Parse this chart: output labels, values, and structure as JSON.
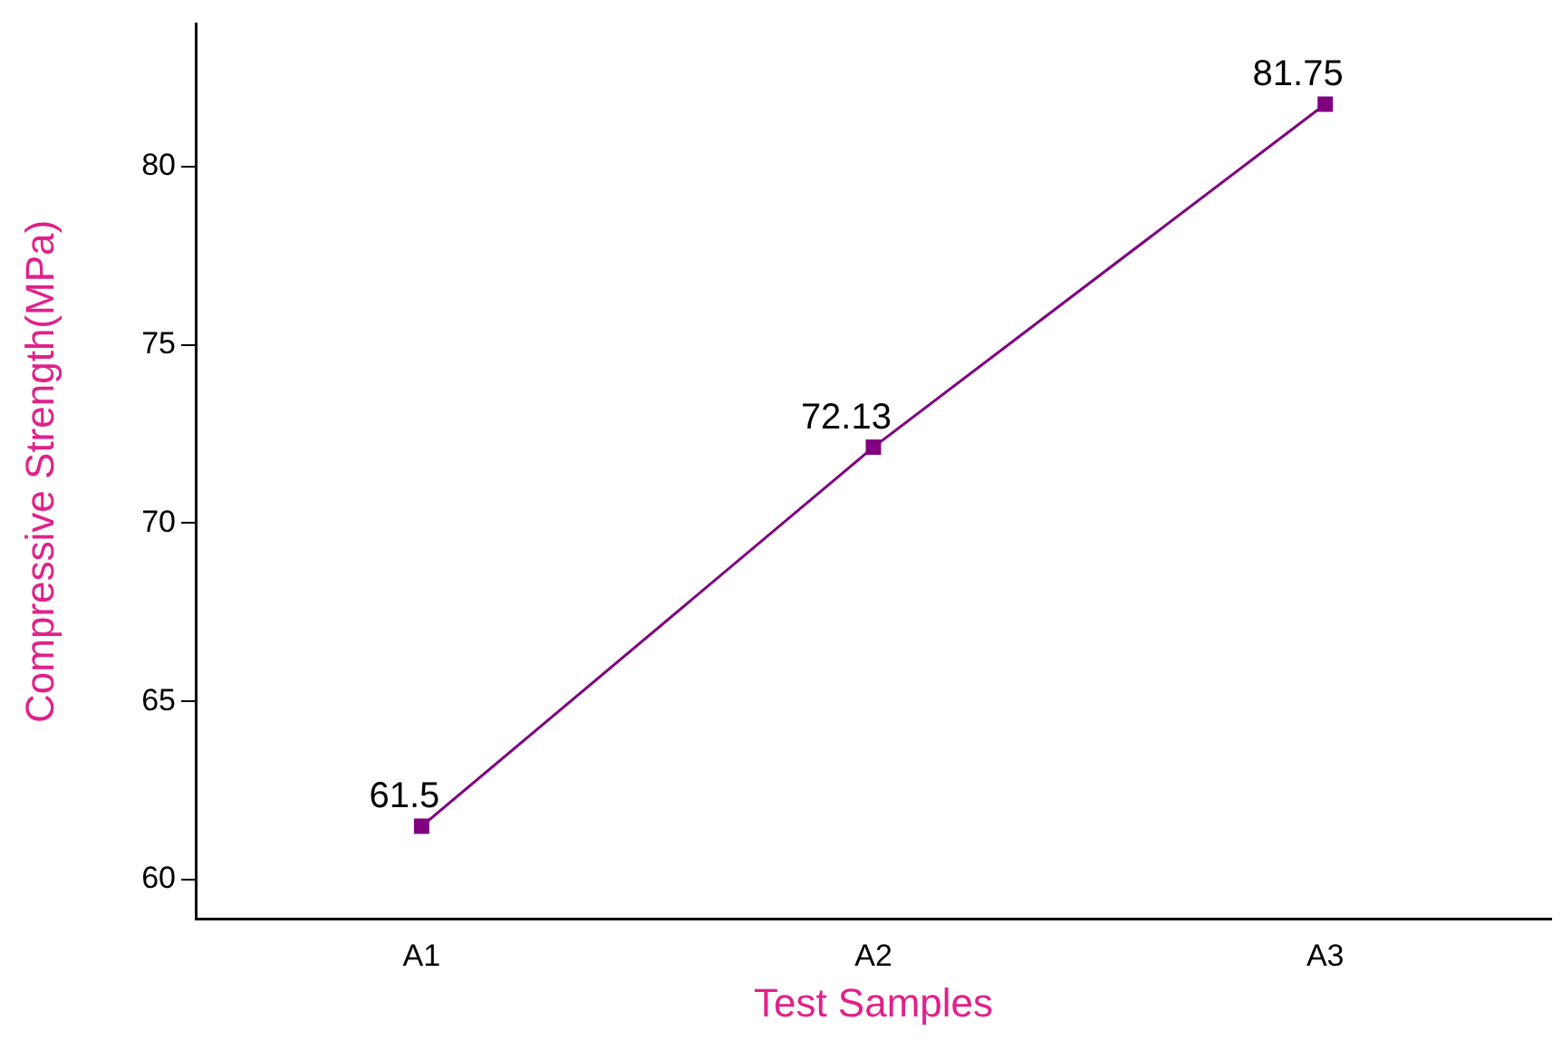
{
  "chart_data": {
    "type": "line",
    "xlabel": "Test Samples",
    "ylabel": "Compressive Strength(MPa)",
    "categories": [
      "A1",
      "A2",
      "A3"
    ],
    "series": [
      {
        "color": "#800080",
        "values": [
          61.5,
          72.13,
          81.75
        ]
      }
    ],
    "ylim": [
      58.9,
      84
    ],
    "yticks": [
      60,
      65,
      70,
      75,
      80
    ],
    "grid": false,
    "legend": false,
    "marker": "square",
    "line_style": "solid",
    "data_labels": true
  }
}
